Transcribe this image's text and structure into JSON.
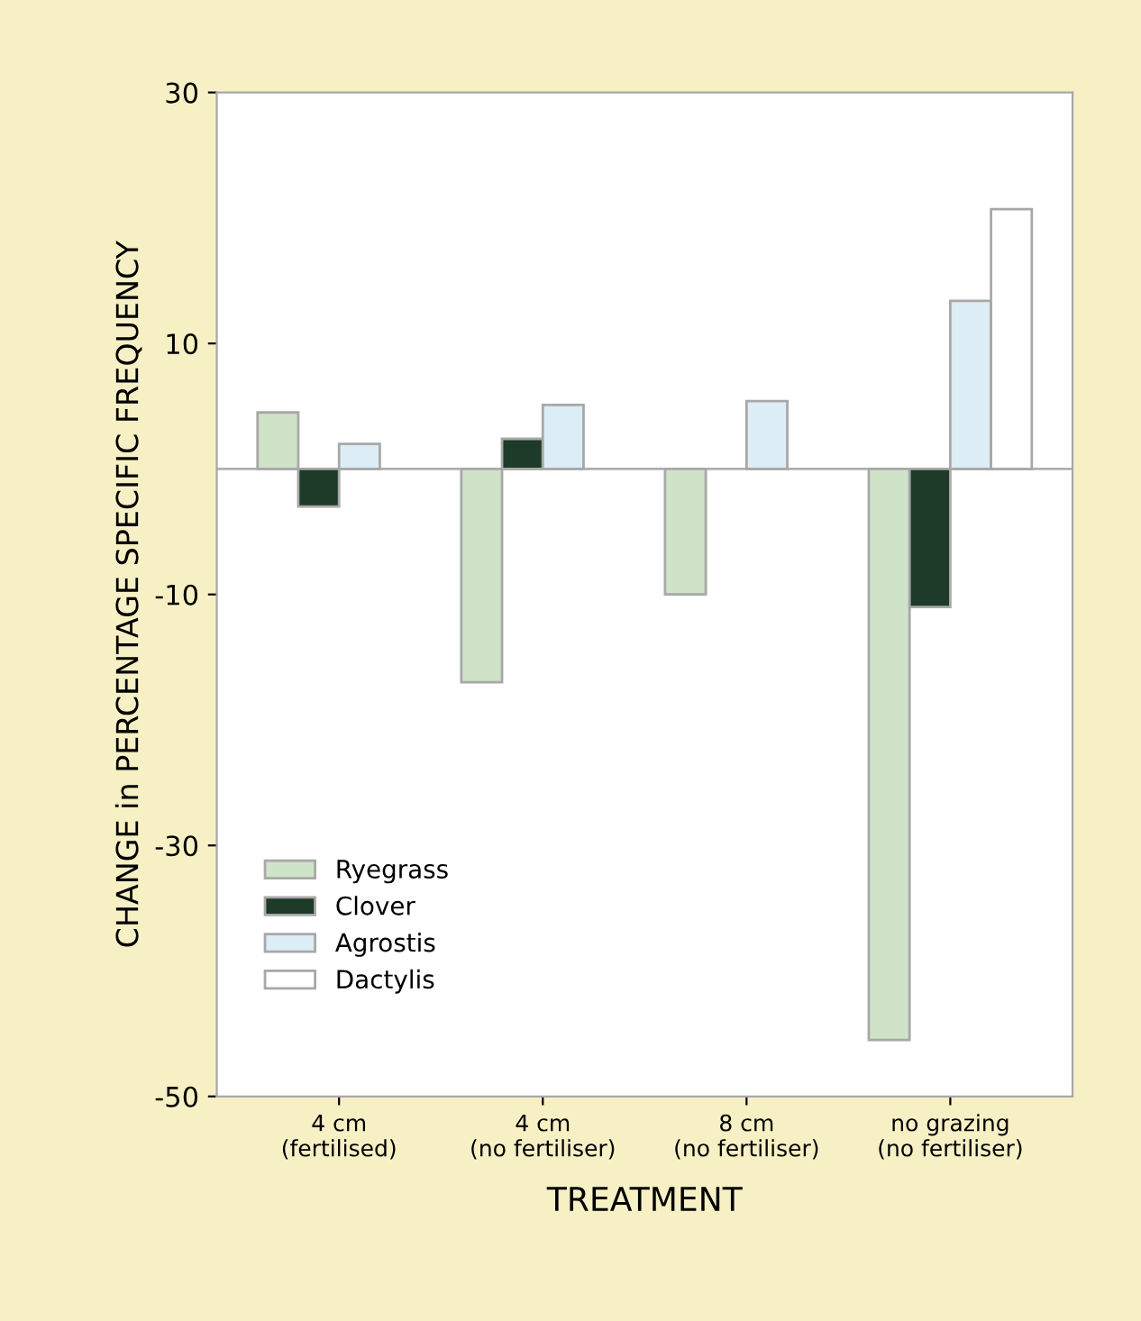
{
  "chart_data": {
    "type": "bar",
    "xlabel": "TREATMENT",
    "ylabel": "CHANGE in PERCENTAGE SPECIFIC FREQUENCY",
    "categories": [
      "4 cm\n(fertilised)",
      "4 cm\n(no fertiliser)",
      "8 cm\n(no fertiliser)",
      "no grazing\n(no fertiliser)"
    ],
    "series": [
      {
        "name": "Ryegrass",
        "color": "#cfe3c8",
        "values": [
          4.5,
          -17,
          -10,
          -45.5
        ]
      },
      {
        "name": "Clover",
        "color": "#1e3a28",
        "values": [
          -3,
          2.4,
          null,
          -11
        ]
      },
      {
        "name": "Agrostis",
        "color": "#dcedf5",
        "values": [
          2,
          5.1,
          5.4,
          13.4
        ]
      },
      {
        "name": "Dactylis",
        "color": "#ffffff",
        "values": [
          null,
          null,
          null,
          20.7
        ]
      }
    ],
    "ylim": [
      -50,
      30
    ],
    "yticks": [
      -50,
      -30,
      -10,
      10,
      30
    ],
    "ref_lines": [
      {
        "axis": "y",
        "value": 0,
        "color": "#b0b0b0"
      }
    ],
    "legend": "bottom left",
    "grid": false
  }
}
